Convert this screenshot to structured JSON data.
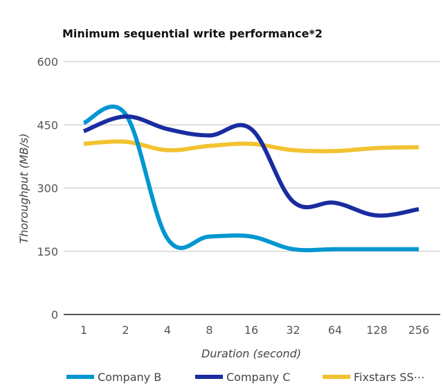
{
  "chart_data": {
    "type": "line",
    "title": "Minimum sequential write performance*2",
    "xlabel": "Duration (second)",
    "ylabel": "Thoroughput (MB/s)",
    "categories": [
      "1",
      "2",
      "4",
      "8",
      "16",
      "32",
      "64",
      "128",
      "256"
    ],
    "ylim": [
      0,
      600
    ],
    "yticks": [
      "0",
      "150",
      "300",
      "450",
      "600"
    ],
    "ytick_values": [
      0,
      150,
      300,
      450,
      600
    ],
    "grid": true,
    "smooth": true,
    "legend_position": "bottom",
    "series": [
      {
        "name": "Company B",
        "color": "#0096d1",
        "values": [
          455,
          475,
          180,
          185,
          185,
          155,
          155,
          155,
          155
        ]
      },
      {
        "name": "Company C",
        "color": "#1a2ca0",
        "values": [
          435,
          470,
          440,
          425,
          440,
          268,
          265,
          235,
          250
        ]
      },
      {
        "name": "Fixstars SS⋯",
        "color": "#f2c230",
        "values": [
          405,
          410,
          390,
          400,
          405,
          390,
          388,
          395,
          397
        ]
      }
    ]
  }
}
